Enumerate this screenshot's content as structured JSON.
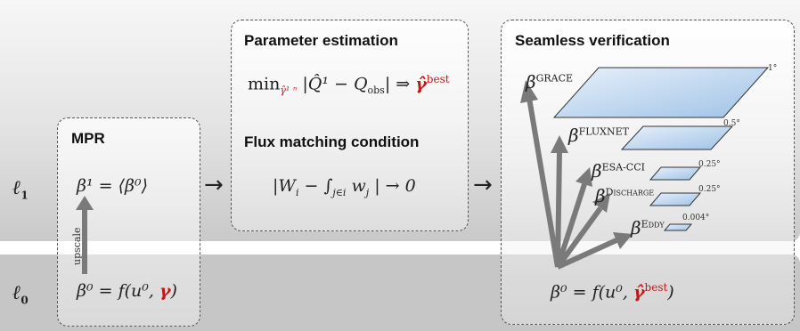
{
  "levels": {
    "upper": "ℓ",
    "upper_sub": "1",
    "lower": "ℓ",
    "lower_sub": "0"
  },
  "mpr": {
    "title": "MPR",
    "upscale_label": "upscale",
    "eq_beta1": "β¹ = ⟨β⁰⟩",
    "eq_beta0_prefix": "β⁰ = f(u⁰, ",
    "eq_beta0_gamma": "γ",
    "eq_beta0_suffix": ")"
  },
  "parameter_estimation": {
    "title": "Parameter estimation",
    "min": "min",
    "min_sub": "γ̂¹ ⁿ",
    "objective": "|Q̂¹ − Q",
    "objective_sub": "obs",
    "objective_end": "| ⇒ ",
    "gamma_best": "γ̂",
    "gamma_best_sup": "best"
  },
  "flux_matching": {
    "title": "Flux matching condition",
    "expression": "|W",
    "expression_sub": "i",
    "expression_mid": " − ∫",
    "integral_sub": "j∈i",
    "integrand": " w",
    "integrand_sub": "j",
    "expression_end": " | → 0"
  },
  "flow_arrows": [
    "→",
    "→"
  ],
  "verification": {
    "title": "Seamless verification",
    "datasets": [
      {
        "beta": "β",
        "name": "GRACE",
        "resolution": "1°"
      },
      {
        "beta": "β",
        "name": "FLUXNET",
        "resolution": "0.5°"
      },
      {
        "beta": "β",
        "name": "ESA-CCI",
        "resolution": "0.25°"
      },
      {
        "beta": "β",
        "name": "Discharge",
        "resolution": "0.25°"
      },
      {
        "beta": "β",
        "name": "Eddy",
        "resolution": "0.004°"
      }
    ],
    "base_eq_prefix": "β⁰ = f(u⁰, ",
    "base_eq_gamma": "γ̂",
    "base_eq_sup": "best",
    "base_eq_suffix": ")"
  },
  "colors": {
    "accent_red": "#c21818",
    "arrow_gray": "#7a7a7a",
    "layer_blue": "#b9d3ee"
  }
}
